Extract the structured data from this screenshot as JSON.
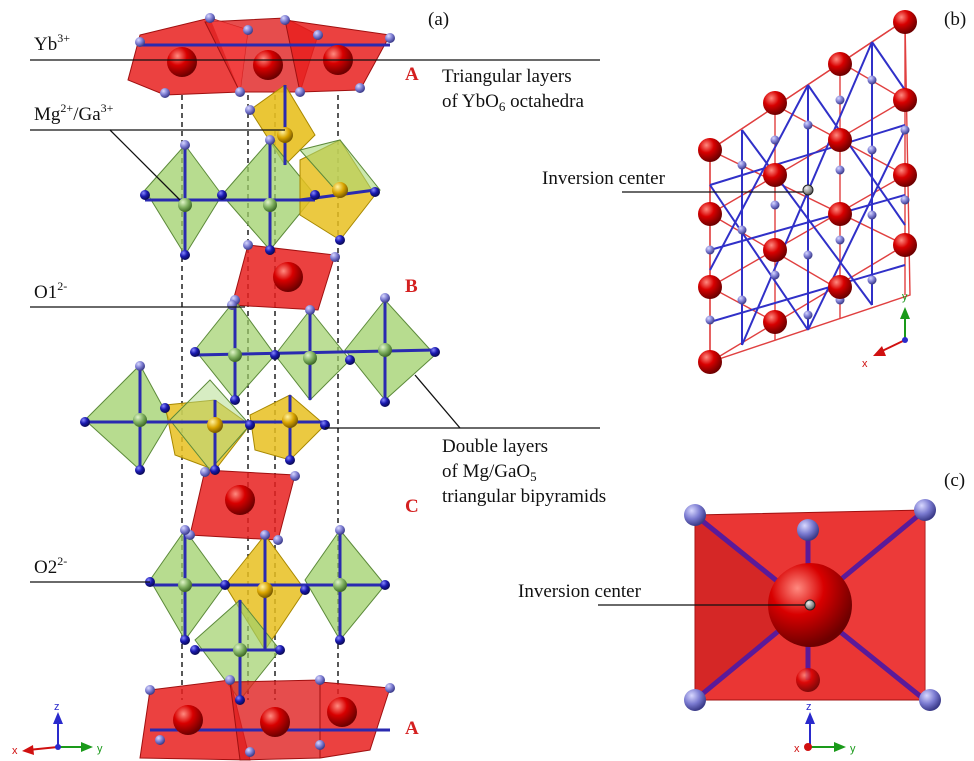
{
  "panels": {
    "a": "(a)",
    "b": "(b)",
    "c": "(c)"
  },
  "labels": {
    "yb_base": "Yb",
    "yb_sup": "3+",
    "mg_base": "Mg",
    "mg_sup": "2+",
    "ga_sep": "/Ga",
    "ga_sup": "3+",
    "o1_base": "O1",
    "o1_sup": "2-",
    "o2_base": "O2",
    "o2_sup": "2-",
    "tri_line1": "Triangular layers",
    "tri_line2_pre": "of YbO",
    "tri_line2_sub": "6",
    "tri_line2_post": " octahedra",
    "dbl_line1": "Double layers",
    "dbl_line2_pre": "of Mg/GaO",
    "dbl_line2_sub": "5",
    "dbl_line3": "triangular bipyramids",
    "inv_b": "Inversion center",
    "inv_c": "Inversion center"
  },
  "layers": {
    "top": "A",
    "middle": "B",
    "lower": "C",
    "bottom": "A"
  },
  "axes": {
    "a": {
      "z": "z",
      "x": "x",
      "y": "y"
    },
    "b": {
      "y": "y",
      "x": "x"
    },
    "c": {
      "z": "z",
      "x": "x",
      "y": "y"
    }
  },
  "colors": {
    "yb_atom": "#cc0000",
    "octahedron": "#e8201e",
    "bipyramid_green": "#9fd06a",
    "bipyramid_yellow": "#e8c020",
    "oxygen_atom": "#1a1aa0",
    "bond": "#2020c0",
    "inversion_center": "#999999",
    "layer_letter": "#d42020"
  }
}
